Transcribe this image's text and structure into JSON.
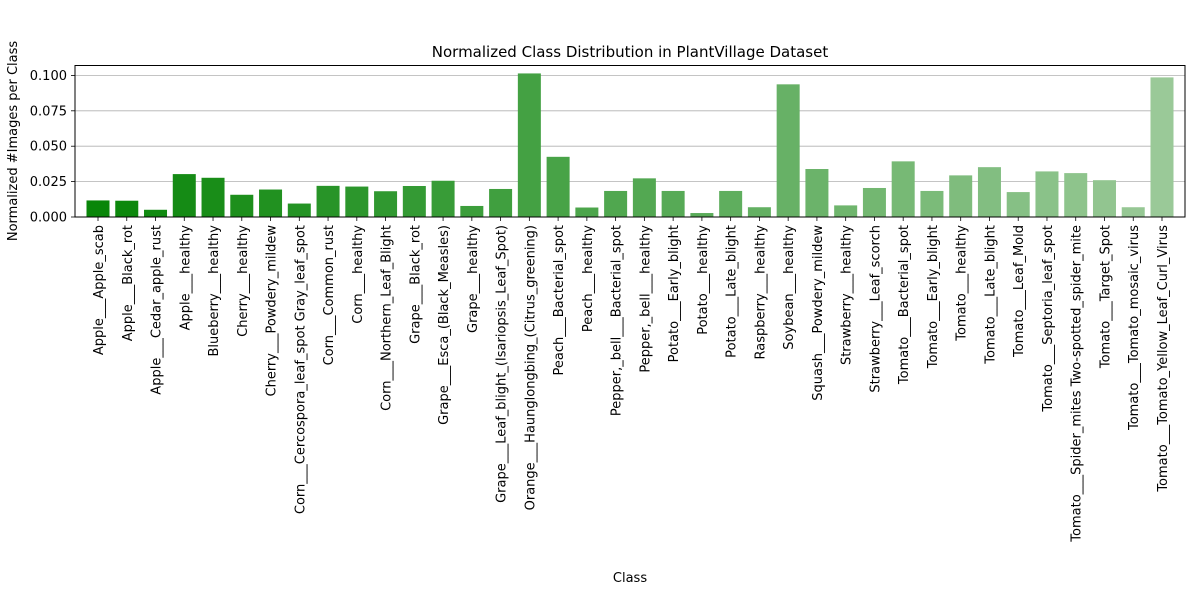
{
  "chart_data": {
    "type": "bar",
    "title": "Normalized Class Distribution in PlantVillage Dataset",
    "xlabel": "Class",
    "ylabel": "Normalized #Images per Class",
    "ylim": [
      0,
      0.107
    ],
    "yticks": [
      "0.000",
      "0.025",
      "0.050",
      "0.075",
      "0.100"
    ],
    "grid": "horizontal",
    "color_start": "#098609",
    "color_end": "#9ac998",
    "categories": [
      "Apple___Apple_scab",
      "Apple___Black_rot",
      "Apple___Cedar_apple_rust",
      "Apple___healthy",
      "Blueberry___healthy",
      "Cherry___healthy",
      "Cherry___Powdery_mildew",
      "Corn___Cercospora_leaf_spot Gray_leaf_spot",
      "Corn___Common_rust",
      "Corn___healthy",
      "Corn___Northern_Leaf_Blight",
      "Grape___Black_rot",
      "Grape___Esca_(Black_Measles)",
      "Grape___healthy",
      "Grape___Leaf_blight_(Isariopsis_Leaf_Spot)",
      "Orange___Haunglongbing_(Citrus_greening)",
      "Peach___Bacterial_spot",
      "Peach___healthy",
      "Pepper,_bell___Bacterial_spot",
      "Pepper,_bell___healthy",
      "Potato___Early_blight",
      "Potato___healthy",
      "Potato___Late_blight",
      "Raspberry___healthy",
      "Soybean___healthy",
      "Squash___Powdery_mildew",
      "Strawberry___healthy",
      "Strawberry___Leaf_scorch",
      "Tomato___Bacterial_spot",
      "Tomato___Early_blight",
      "Tomato___healthy",
      "Tomato___Late_blight",
      "Tomato___Leaf_Mold",
      "Tomato___Septoria_leaf_spot",
      "Tomato___Spider_mites Two-spotted_spider_mite",
      "Tomato___Target_Spot",
      "Tomato___Tomato_mosaic_virus",
      "Tomato___Tomato_Yellow_Leaf_Curl_Virus"
    ],
    "values": [
      0.0117,
      0.0115,
      0.0051,
      0.0303,
      0.0277,
      0.0157,
      0.0194,
      0.0095,
      0.022,
      0.0215,
      0.0182,
      0.0219,
      0.0256,
      0.0078,
      0.0198,
      0.1014,
      0.0425,
      0.0067,
      0.0184,
      0.0273,
      0.0184,
      0.0028,
      0.0184,
      0.0069,
      0.0937,
      0.0339,
      0.0082,
      0.0205,
      0.0393,
      0.0184,
      0.0294,
      0.0352,
      0.0176,
      0.0322,
      0.031,
      0.026,
      0.0069,
      0.0986
    ]
  }
}
